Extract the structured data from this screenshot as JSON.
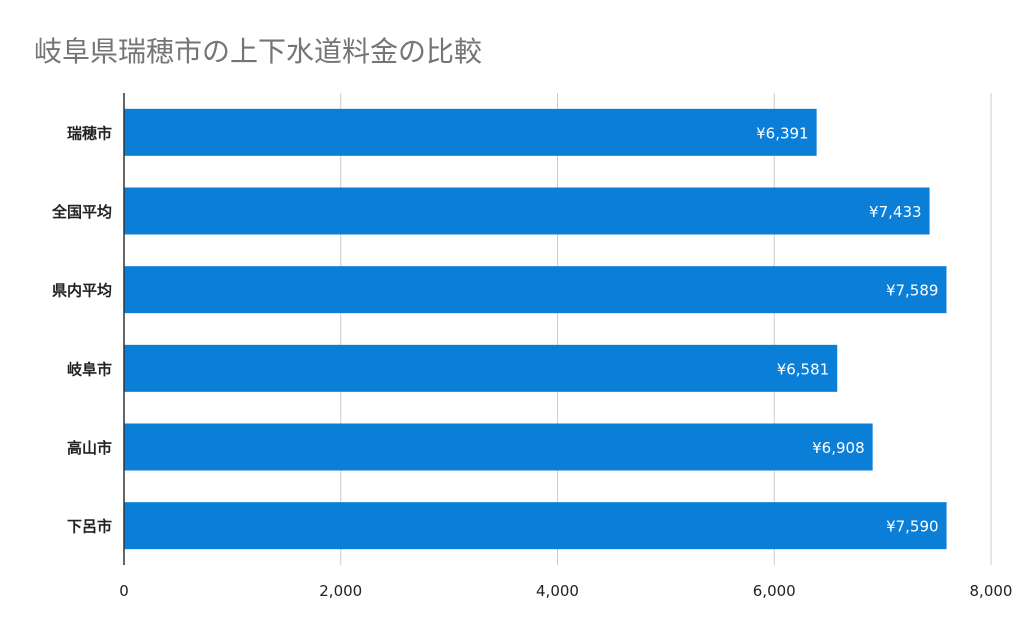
{
  "chart_data": {
    "type": "bar",
    "orientation": "horizontal",
    "title": "岐阜県瑞穂市の上下水道料金の比較",
    "categories": [
      "瑞穂市",
      "全国平均",
      "県内平均",
      "岐阜市",
      "高山市",
      "下呂市"
    ],
    "values": [
      6391,
      7433,
      7589,
      6581,
      6908,
      7590
    ],
    "data_labels": [
      "¥6,391",
      "¥7,433",
      "¥7,589",
      "¥6,581",
      "¥6,908",
      "¥7,590"
    ],
    "xlim": [
      0,
      8000
    ],
    "xticks": [
      0,
      2000,
      4000,
      6000,
      8000
    ],
    "xtick_labels": [
      "0",
      "2,000",
      "4,000",
      "6,000",
      "8,000"
    ],
    "grid": true,
    "legend": "none",
    "colors": {
      "bar": "#0b7fd8",
      "grid": "#cccccc",
      "axis": "#333333",
      "title": "#757575"
    }
  }
}
